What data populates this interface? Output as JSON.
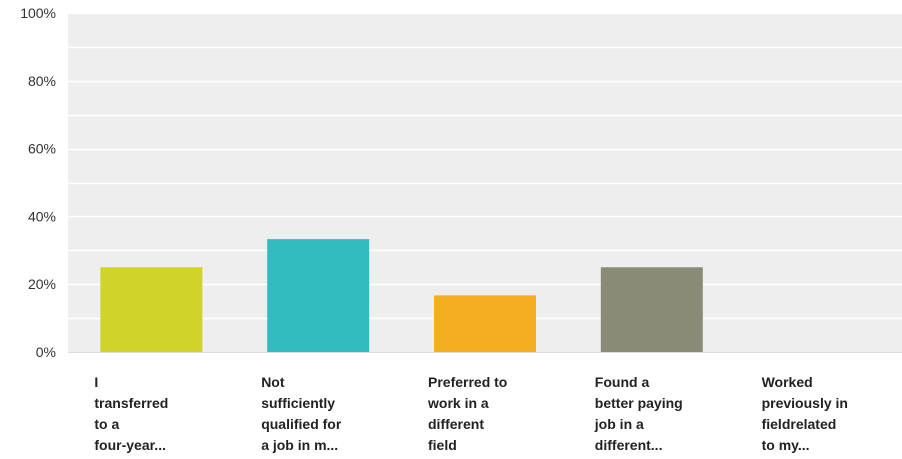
{
  "chart_data": {
    "type": "bar",
    "title": "",
    "xlabel": "",
    "ylabel": "",
    "ylim": [
      0,
      100
    ],
    "y_ticks": [
      0,
      20,
      40,
      60,
      80,
      100
    ],
    "y_tick_labels": [
      "0%",
      "20%",
      "40%",
      "60%",
      "80%",
      "100%"
    ],
    "grid": true,
    "categories": [
      [
        "I",
        "transferred",
        "to a",
        "four-year..."
      ],
      [
        "Not",
        "sufficiently",
        "qualified for",
        "a job in m..."
      ],
      [
        "Preferred to",
        "work in a",
        "different",
        "field"
      ],
      [
        "Found a",
        "better paying",
        "job in a",
        "different..."
      ],
      [
        "Worked",
        "previously in",
        "fieldrelated",
        "to my..."
      ]
    ],
    "values": [
      25,
      33.3,
      16.7,
      25,
      0
    ],
    "colors": [
      "#d0d42a",
      "#33bcc0",
      "#f6ae21",
      "#8a8a78",
      "#cccccc"
    ],
    "plot_background": "#eeeeee",
    "grid_color": "#ffffff"
  }
}
